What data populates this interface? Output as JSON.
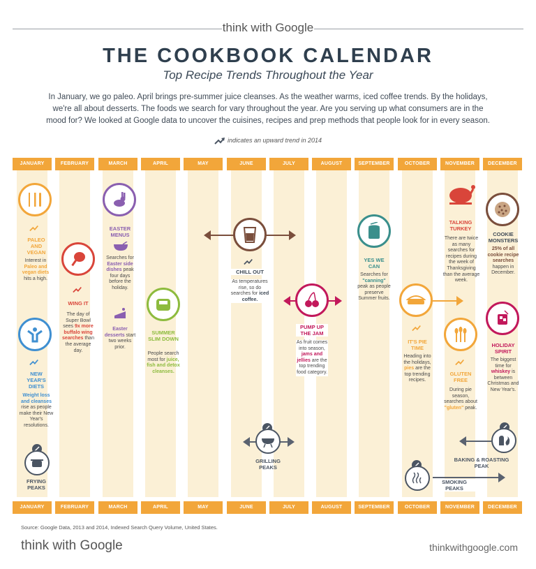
{
  "brand": {
    "think": "think with ",
    "google": "Google",
    "url": "thinkwithgoogle.com"
  },
  "title": "THE COOKBOOK CALENDAR",
  "subtitle": "Top Recipe Trends Throughout the Year",
  "intro": "In January, we go paleo. April brings pre-summer juice cleanses. As the weather warms, iced coffee trends. By the holidays, we're all about desserts. The foods we search for vary throughout the year. Are you serving up what consumers are in the mood for? We looked at Google data to uncover the cuisines, recipes and prep methods that people look for in every season.",
  "legend": "indicates an upward trend in 2014",
  "months": [
    "JANUARY",
    "FEBRUARY",
    "MARCH",
    "APRIL",
    "MAY",
    "JUNE",
    "JULY",
    "AUGUST",
    "SEPTEMBER",
    "OCTOBER",
    "NOVEMBER",
    "DECEMBER"
  ],
  "trends": {
    "paleo": {
      "title": "PALEO AND VEGAN",
      "pre": "Interest in ",
      "hl": "Paleo and vegan diets",
      "post": " hits a high."
    },
    "newyear": {
      "title": "NEW YEAR'S DIETS",
      "hl": "Weight loss and cleanses",
      "post": " rise as people make their New Year's resolutions."
    },
    "frying": {
      "title": "FRYING PEAKS"
    },
    "wing": {
      "title": "WING IT",
      "pre": "The day of Super Bowl sees ",
      "hl": "9x more buffalo wing searches",
      "post": " than the average day."
    },
    "easter_menus": {
      "title": "EASTER MENUS",
      "pre": "Searches for ",
      "hl": "Easter side dishes",
      "post": " peak four days before the holiday."
    },
    "easter_desserts": {
      "hl": "Easter desserts",
      "post": " start two weeks prior."
    },
    "slim": {
      "title": "SUMMER SLIM DOWN",
      "pre": "People search most for ",
      "hl": "juice, fish and detox cleanses."
    },
    "chill": {
      "title": "CHILL OUT",
      "pre": "As temperatures rise, so do searches for ",
      "hl": "iced coffee."
    },
    "jam": {
      "title": "PUMP UP THE JAM",
      "pre": "As fruit comes into season, ",
      "hl": "jams and jellies",
      "post": " are the top trending food category."
    },
    "grilling": {
      "title": "GRILLING PEAKS"
    },
    "canning": {
      "title": "YES WE CAN",
      "pre": "Searches for ",
      "hl": "\"canning\"",
      "post": " peak as people preserve Summer fruits."
    },
    "pie": {
      "title": "IT'S PIE TIME",
      "pre": "Heading into the holidays, ",
      "hl": "pies",
      "post": " are the top trending recipes."
    },
    "smoking": {
      "title": "SMOKING PEAKS"
    },
    "turkey": {
      "title": "TALKING TURKEY",
      "post": "There are twice as many searches for recipes during the week of Thanksgiving than the average week."
    },
    "gluten": {
      "title": "GLUTEN FREE",
      "pre": "During pie season, searches about ",
      "hl": "\"gluten\"",
      "post": " peak."
    },
    "baking": {
      "title": "BAKING & ROASTING PEAK"
    },
    "cookie": {
      "title": "COOKIE MONSTERS",
      "hl": "25% of all cookie recipe searches",
      "post": " happen in December."
    },
    "holiday": {
      "title": "HOLIDAY SPIRIT",
      "pre": "The biggest time for ",
      "hl": "whiskey",
      "post": " is between Christmas and New Year's."
    }
  },
  "source": "Source: Google Data, 2013 and 2014, Indexed Search Query Volume, United States.",
  "colors": {
    "orange": "#f2a63a",
    "red": "#d9453a",
    "purple": "#8a5fb0",
    "green": "#8dbb3e",
    "brown": "#7a4e3c",
    "magenta": "#c2185b",
    "teal": "#3a8f8c",
    "blue": "#3f8fd1",
    "gray": "#4b5563"
  }
}
